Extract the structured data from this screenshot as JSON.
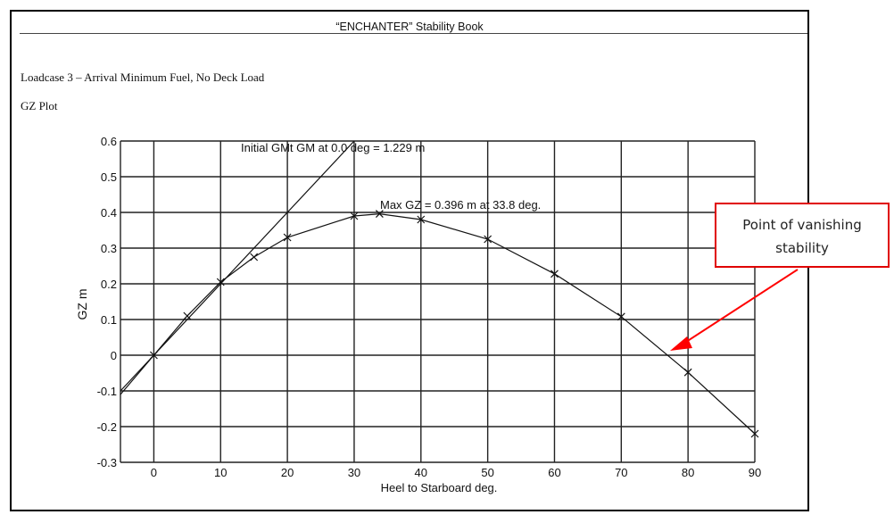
{
  "document": {
    "header_title": "“ENCHANTER” Stability Book",
    "loadcase": "Loadcase 3 – Arrival Minimum Fuel, No Deck Load",
    "plot_label": "GZ Plot"
  },
  "annotation": {
    "callout_line1": "Point of vanishing",
    "callout_line2": "stability",
    "callout_border_color": "#e00000",
    "arrow_color": "#ff0000"
  },
  "chart_data": {
    "type": "line",
    "title": "GZ Plot",
    "xlabel": "Heel to Starboard   deg.",
    "ylabel": "GZ  m",
    "xlim": [
      -5,
      90
    ],
    "ylim": [
      -0.3,
      0.6
    ],
    "grid": true,
    "x_ticks": [
      "0",
      "10",
      "20",
      "30",
      "40",
      "50",
      "60",
      "70",
      "80",
      "90"
    ],
    "y_ticks": [
      "0.6",
      "0.5",
      "0.4",
      "0.3",
      "0.2",
      "0.1",
      "0",
      "-0.1",
      "-0.2",
      "-0.3"
    ],
    "series": [
      {
        "name": "GZ",
        "x": [
          -5,
          0,
          5,
          10,
          15,
          20,
          30,
          33.8,
          40,
          50,
          60,
          70,
          80,
          90
        ],
        "values": [
          -0.11,
          0.0,
          0.11,
          0.205,
          0.275,
          0.33,
          0.39,
          0.396,
          0.38,
          0.325,
          0.228,
          0.108,
          -0.048,
          -0.22
        ]
      },
      {
        "name": "Initial GMt",
        "x": [
          0,
          30
        ],
        "values": [
          0,
          0.6
        ]
      }
    ],
    "annotations": [
      "Initial GMt GM at 0.0 deg = 1.229 m",
      "Max GZ = 0.396 m at 33.8 deg.",
      "Point of vanishing stability"
    ]
  }
}
